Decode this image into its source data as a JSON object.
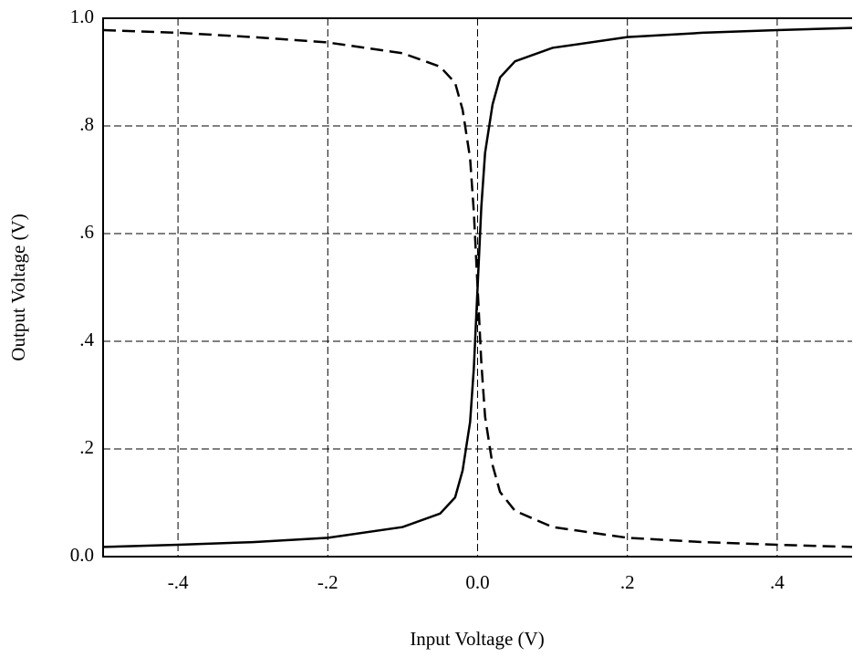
{
  "chart_data": {
    "type": "line",
    "xlabel": "Input Voltage (V)",
    "ylabel": "Output Voltage (V)",
    "x": [
      -0.5,
      -0.4,
      -0.3,
      -0.2,
      -0.1,
      -0.05,
      -0.03,
      -0.02,
      -0.01,
      -0.005,
      0,
      0.005,
      0.01,
      0.02,
      0.03,
      0.05,
      0.1,
      0.2,
      0.3,
      0.4,
      0.5
    ],
    "series": [
      {
        "color": "#000000",
        "line_style": "solid",
        "values": [
          0.018,
          0.022,
          0.027,
          0.035,
          0.055,
          0.08,
          0.11,
          0.16,
          0.25,
          0.35,
          0.5,
          0.65,
          0.75,
          0.84,
          0.89,
          0.92,
          0.945,
          0.965,
          0.973,
          0.978,
          0.982
        ]
      },
      {
        "color": "#000000",
        "line_style": "dashed",
        "values": [
          0.978,
          0.973,
          0.965,
          0.955,
          0.935,
          0.91,
          0.88,
          0.83,
          0.74,
          0.64,
          0.5,
          0.36,
          0.26,
          0.17,
          0.12,
          0.085,
          0.055,
          0.035,
          0.027,
          0.022,
          0.018
        ]
      }
    ],
    "xlim": [
      -0.5,
      0.5
    ],
    "xticks": [
      {
        "value": -0.4,
        "label": "-.4"
      },
      {
        "value": -0.2,
        "label": "-.2"
      },
      {
        "value": 0,
        "label": "0.0"
      },
      {
        "value": 0.2,
        "label": ".2"
      },
      {
        "value": 0.4,
        "label": ".4"
      }
    ],
    "ylim": [
      0,
      1
    ],
    "yticks": [
      {
        "value": 0,
        "label": "0.0"
      },
      {
        "value": 0.2,
        "label": ".2"
      },
      {
        "value": 0.4,
        "label": ".4"
      },
      {
        "value": 0.6,
        "label": ".6"
      },
      {
        "value": 0.8,
        "label": ".8"
      },
      {
        "value": 1,
        "label": "1.0"
      }
    ],
    "grid": true
  }
}
